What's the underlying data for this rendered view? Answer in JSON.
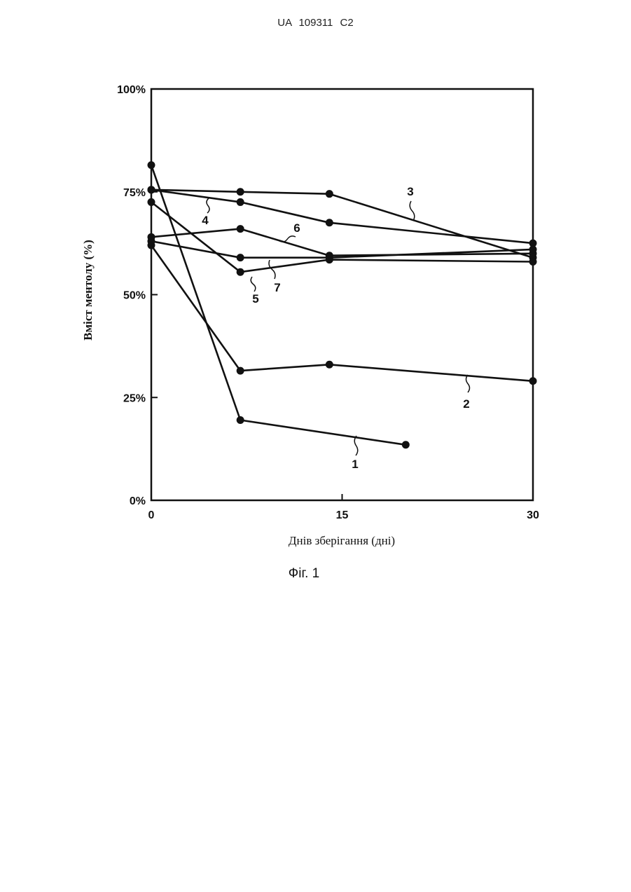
{
  "header": {
    "doc_number": "UA   109311   C2"
  },
  "caption": "Фіг. 1",
  "chart_data": {
    "type": "line",
    "title": "",
    "xlabel": "Днів зберігання (дні)",
    "ylabel": "Вміст ментолу (%)",
    "xlim": [
      0,
      30
    ],
    "ylim": [
      0,
      100
    ],
    "x_ticks": [
      0,
      15,
      30
    ],
    "x_tick_labels": [
      "0",
      "15",
      "30"
    ],
    "y_ticks": [
      0,
      25,
      50,
      75,
      100
    ],
    "y_tick_labels": [
      "0%",
      "25%",
      "50%",
      "75%",
      "100%"
    ],
    "grid": false,
    "legend": "none",
    "series": [
      {
        "name": "1",
        "x": [
          0,
          7,
          20
        ],
        "y": [
          81.5,
          19.5,
          13.5
        ]
      },
      {
        "name": "2",
        "x": [
          0,
          7,
          14,
          30
        ],
        "y": [
          62,
          31.5,
          33,
          29
        ]
      },
      {
        "name": "3",
        "x": [
          0,
          7,
          14,
          30
        ],
        "y": [
          75.5,
          75,
          74.5,
          59
        ]
      },
      {
        "name": "4",
        "x": [
          0,
          7,
          14,
          30
        ],
        "y": [
          75.5,
          72.5,
          67.5,
          62.5
        ]
      },
      {
        "name": "5",
        "x": [
          0,
          7,
          14,
          30
        ],
        "y": [
          72.5,
          55.5,
          58.5,
          58
        ]
      },
      {
        "name": "6",
        "x": [
          0,
          7,
          14,
          30
        ],
        "y": [
          64,
          66,
          59.5,
          60
        ]
      },
      {
        "name": "7",
        "x": [
          0,
          7,
          14,
          30
        ],
        "y": [
          63,
          59,
          59,
          61
        ]
      }
    ]
  }
}
